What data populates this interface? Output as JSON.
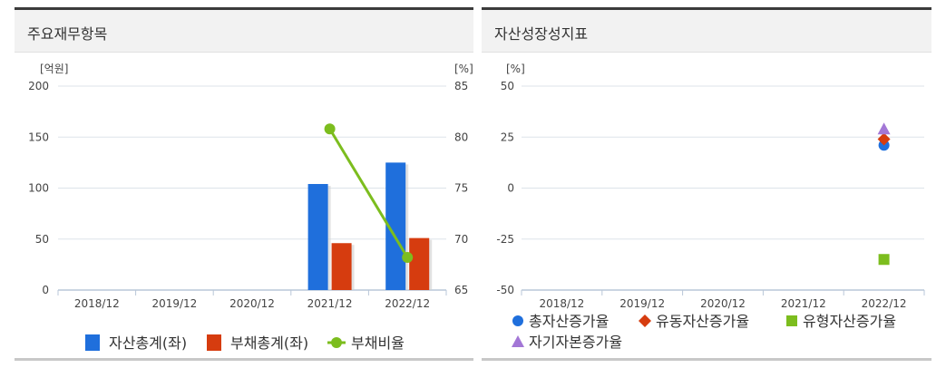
{
  "panels": {
    "left_title": "주요재무항목",
    "right_title": "자산성장성지표"
  },
  "chart_data": [
    {
      "type": "bar",
      "title": "주요재무항목",
      "categories": [
        "2018/12",
        "2019/12",
        "2020/12",
        "2021/12",
        "2022/12"
      ],
      "y_left_unit": "[억원]",
      "y_right_unit": "[%]",
      "y_left_ticks": [
        "200",
        "150",
        "100",
        "50",
        "0"
      ],
      "y_right_ticks": [
        "85",
        "80",
        "75",
        "70",
        "65"
      ],
      "ylim_left": [
        0,
        200
      ],
      "ylim_right": [
        65,
        85
      ],
      "grid": true,
      "legend_position": "bottom",
      "series": [
        {
          "name": "자산총계(좌)",
          "kind": "bar",
          "axis": "left",
          "color": "#1f6fdc",
          "values": [
            null,
            null,
            null,
            104,
            125
          ]
        },
        {
          "name": "부채총계(좌)",
          "kind": "bar",
          "axis": "left",
          "color": "#d63c0f",
          "values": [
            null,
            null,
            null,
            46,
            51
          ]
        },
        {
          "name": "부채비율",
          "kind": "line",
          "axis": "right",
          "color": "#7cbd1e",
          "values": [
            null,
            null,
            null,
            80.8,
            68.2
          ]
        }
      ]
    },
    {
      "type": "scatter",
      "title": "자산성장성지표",
      "categories": [
        "2018/12",
        "2019/12",
        "2020/12",
        "2021/12",
        "2022/12"
      ],
      "y_unit": "[%]",
      "y_ticks": [
        "50",
        "25",
        "0",
        "-25",
        "-50"
      ],
      "ylim": [
        -50,
        50
      ],
      "grid": true,
      "legend_position": "bottom",
      "series": [
        {
          "name": "총자산증가율",
          "marker": "circle",
          "color": "#1f6fdc",
          "values": [
            null,
            null,
            null,
            null,
            21
          ]
        },
        {
          "name": "유동자산증가율",
          "marker": "diamond",
          "color": "#d63c0f",
          "values": [
            null,
            null,
            null,
            null,
            24
          ]
        },
        {
          "name": "유형자산증가율",
          "marker": "square",
          "color": "#7cbd1e",
          "values": [
            null,
            null,
            null,
            null,
            -35
          ]
        },
        {
          "name": "자기자본증가율",
          "marker": "triangle",
          "color": "#a377d6",
          "values": [
            null,
            null,
            null,
            null,
            29
          ]
        }
      ]
    }
  ]
}
